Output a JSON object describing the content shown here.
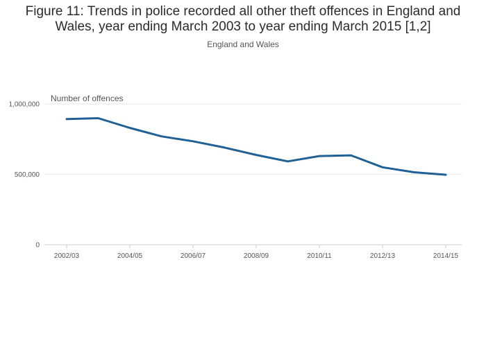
{
  "chart_data": {
    "type": "line",
    "title": "Figure 11: Trends in police recorded all other theft offences in England and Wales, year ending March 2003 to year ending March 2015 [1,2]",
    "subtitle": "England and Wales",
    "ylabel": "Number of offences",
    "xlabel": "",
    "categories": [
      "2002/03",
      "2003/04",
      "2004/05",
      "2005/06",
      "2006/07",
      "2007/08",
      "2008/09",
      "2009/10",
      "2010/11",
      "2011/12",
      "2012/13",
      "2013/14",
      "2014/15"
    ],
    "x_tick_labels": [
      "2002/03",
      "2004/05",
      "2006/07",
      "2008/09",
      "2010/11",
      "2012/13",
      "2014/15"
    ],
    "y_tick_labels": [
      "0",
      "500,000",
      "1,000,000"
    ],
    "y_ticks": [
      0,
      500000,
      1000000
    ],
    "ylim": [
      0,
      1000000
    ],
    "grid": true,
    "legend": "none",
    "series": [
      {
        "values": [
          893000,
          899000,
          830000,
          770000,
          735000,
          690000,
          638000,
          592000,
          630000,
          635000,
          550000,
          515000,
          497000
        ],
        "color": "#206095"
      }
    ]
  }
}
